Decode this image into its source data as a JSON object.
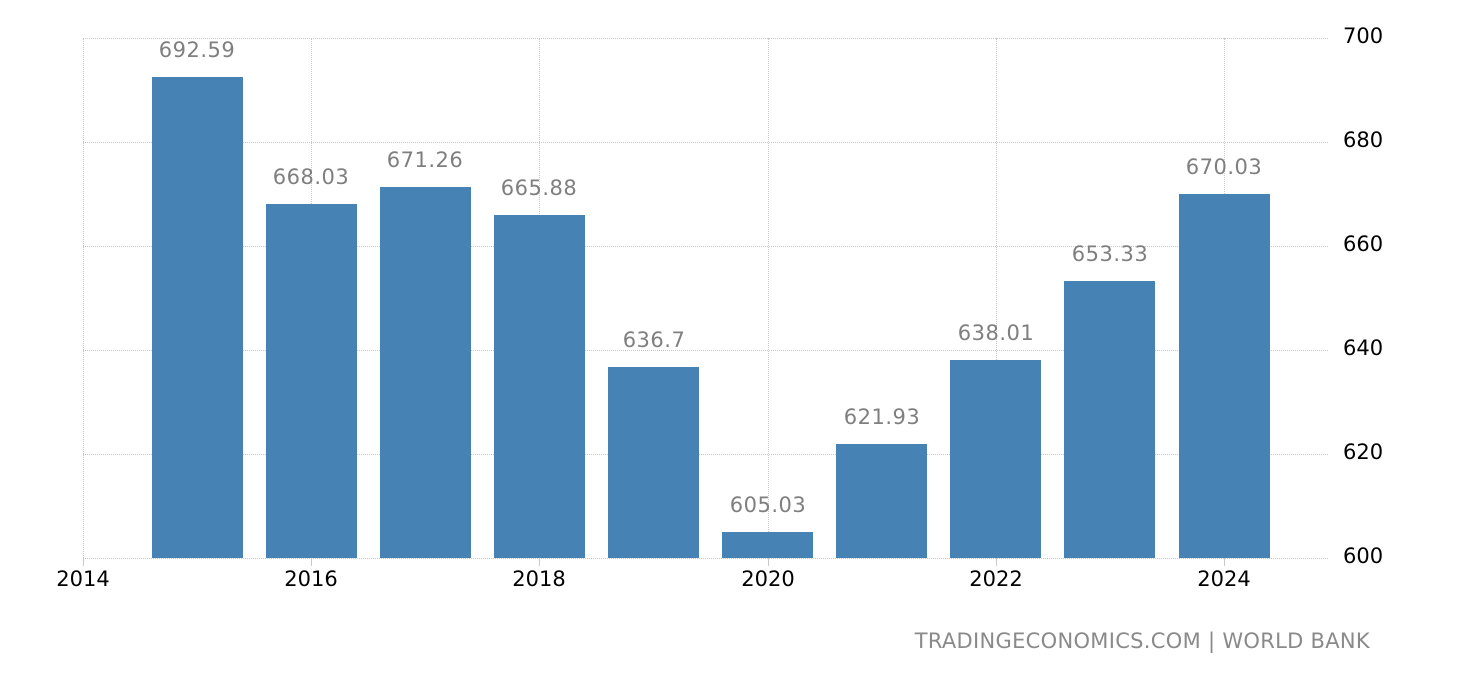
{
  "chart_data": {
    "type": "bar",
    "title": "",
    "xlabel": "",
    "ylabel": "",
    "categories": [
      "2015",
      "2016",
      "2017",
      "2018",
      "2019",
      "2020",
      "2021",
      "2022",
      "2023",
      "2024"
    ],
    "values": [
      692.59,
      668.03,
      671.26,
      665.88,
      636.7,
      605.03,
      621.93,
      638.01,
      653.33,
      670.03
    ],
    "value_labels": [
      "692.59",
      "668.03",
      "671.26",
      "665.88",
      "636.7",
      "605.03",
      "621.93",
      "638.01",
      "653.33",
      "670.03"
    ],
    "ylim": [
      600,
      700
    ],
    "y_ticks": [
      "600",
      "620",
      "640",
      "660",
      "680",
      "700"
    ],
    "x_ticks": [
      "2014",
      "2016",
      "2018",
      "2020",
      "2022",
      "2024"
    ],
    "x_tick_years": [
      2014,
      2016,
      2018,
      2020,
      2022,
      2024
    ],
    "y_axis_position": "right",
    "grid": true,
    "legend": null,
    "bar_color": "#4682B4",
    "label_color": "#7f7f7f"
  },
  "footer": {
    "source": "TRADINGECONOMICS.COM | WORLD BANK"
  }
}
